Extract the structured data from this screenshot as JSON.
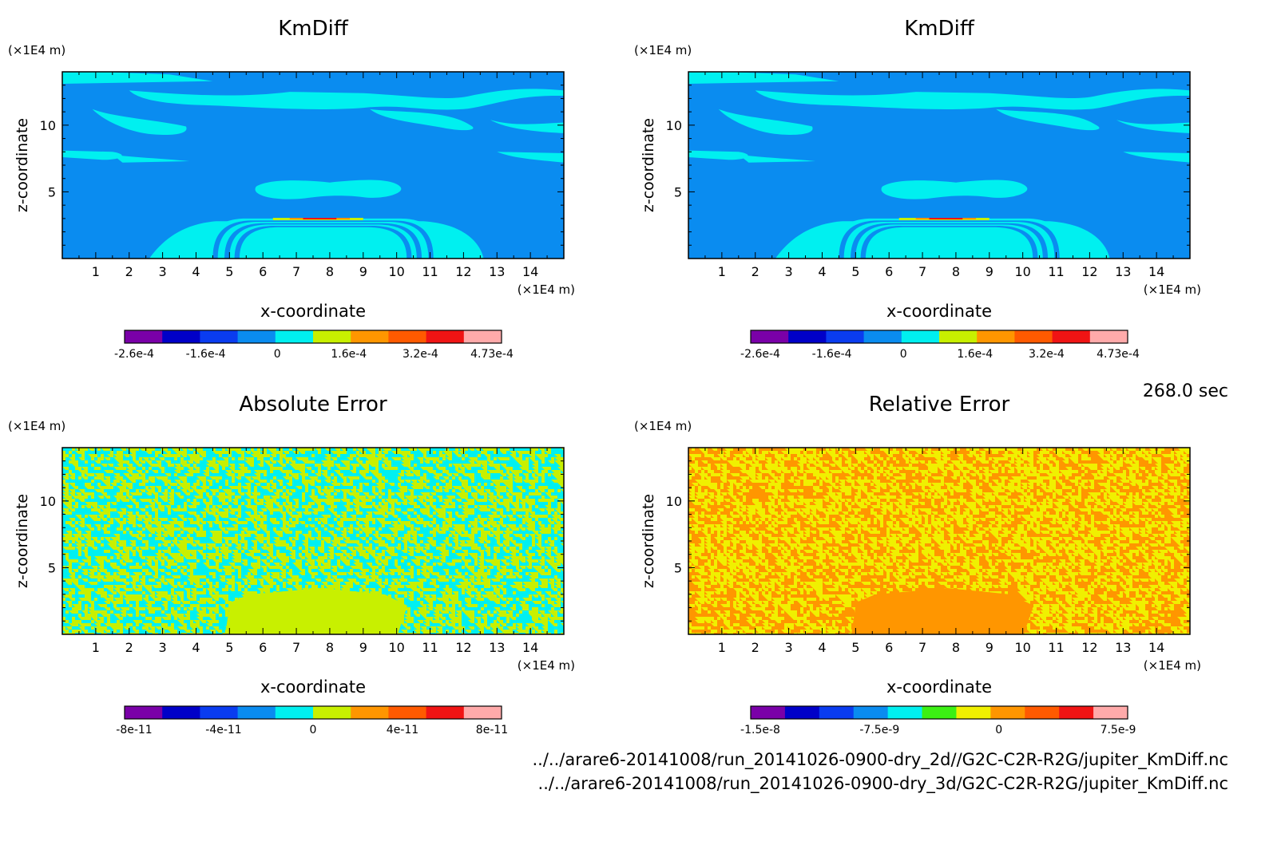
{
  "time_label": "268.0 sec",
  "files": [
    "../../arare6-20141008/run_20141026-0900-dry_2d//G2C-C2R-R2G/jupiter_KmDiff.nc",
    "../../arare6-20141008/run_20141026-0900-dry_3d/G2C-C2R-R2G/jupiter_KmDiff.nc"
  ],
  "chart_data": [
    {
      "type": "heatmap",
      "title": "KmDiff",
      "xlabel": "x-coordinate",
      "ylabel": "z-coordinate",
      "x_unit": "(×1E4 m)",
      "z_unit": "(×1E4 m)",
      "xlim": [
        0,
        15
      ],
      "zlim": [
        0,
        14
      ],
      "x_ticks": [
        1,
        2,
        3,
        4,
        5,
        6,
        7,
        8,
        9,
        10,
        11,
        12,
        13,
        14
      ],
      "z_ticks": [
        5,
        10
      ],
      "colorbar": {
        "colors": [
          "#7a00a8",
          "#0000c8",
          "#0a3cf0",
          "#0a8cf0",
          "#00f0f0",
          "#c8f000",
          "#ff9600",
          "#ff5a00",
          "#f01414",
          "#ffaaaa"
        ],
        "tick_labels": [
          "-2.6e-4",
          "-1.6e-4",
          "0",
          "1.6e-4",
          "3.2e-4",
          "4.73e-4"
        ],
        "range": [
          -0.00026,
          0.000473
        ]
      },
      "pattern": "kmdiff"
    },
    {
      "type": "heatmap",
      "title": "KmDiff",
      "xlabel": "x-coordinate",
      "ylabel": "z-coordinate",
      "x_unit": "(×1E4 m)",
      "z_unit": "(×1E4 m)",
      "xlim": [
        0,
        15
      ],
      "zlim": [
        0,
        14
      ],
      "x_ticks": [
        1,
        2,
        3,
        4,
        5,
        6,
        7,
        8,
        9,
        10,
        11,
        12,
        13,
        14
      ],
      "z_ticks": [
        5,
        10
      ],
      "colorbar": {
        "colors": [
          "#7a00a8",
          "#0000c8",
          "#0a3cf0",
          "#0a8cf0",
          "#00f0f0",
          "#c8f000",
          "#ff9600",
          "#ff5a00",
          "#f01414",
          "#ffaaaa"
        ],
        "tick_labels": [
          "-2.6e-4",
          "-1.6e-4",
          "0",
          "1.6e-4",
          "3.2e-4",
          "4.73e-4"
        ],
        "range": [
          -0.00026,
          0.000473
        ]
      },
      "pattern": "kmdiff"
    },
    {
      "type": "heatmap",
      "title": "Absolute Error",
      "xlabel": "x-coordinate",
      "ylabel": "z-coordinate",
      "x_unit": "(×1E4 m)",
      "z_unit": "(×1E4 m)",
      "xlim": [
        0,
        15
      ],
      "zlim": [
        0,
        14
      ],
      "x_ticks": [
        1,
        2,
        3,
        4,
        5,
        6,
        7,
        8,
        9,
        10,
        11,
        12,
        13,
        14
      ],
      "z_ticks": [
        5,
        10
      ],
      "colorbar": {
        "colors": [
          "#7a00a8",
          "#0000c8",
          "#0a3cf0",
          "#0a8cf0",
          "#00f0f0",
          "#c8f000",
          "#ff9600",
          "#ff5a00",
          "#f01414",
          "#ffaaaa"
        ],
        "tick_labels": [
          "-8e-11",
          "-4e-11",
          "0",
          "4e-11",
          "8e-11"
        ],
        "range": [
          -1e-10,
          1e-10
        ]
      },
      "pattern": "abs_noise",
      "noise_colors": [
        "#00f0f0",
        "#c8f000"
      ],
      "block_color": "#c8f000"
    },
    {
      "type": "heatmap",
      "title": "Relative Error",
      "xlabel": "x-coordinate",
      "ylabel": "z-coordinate",
      "x_unit": "(×1E4 m)",
      "z_unit": "(×1E4 m)",
      "xlim": [
        0,
        15
      ],
      "zlim": [
        0,
        14
      ],
      "x_ticks": [
        1,
        2,
        3,
        4,
        5,
        6,
        7,
        8,
        9,
        10,
        11,
        12,
        13,
        14
      ],
      "z_ticks": [
        5,
        10
      ],
      "colorbar": {
        "colors": [
          "#7a00a8",
          "#0000c8",
          "#0a3cf0",
          "#0a8cf0",
          "#00f0f0",
          "#3cf014",
          "#f0f000",
          "#ff9600",
          "#ff5a00",
          "#f01414",
          "#ffaaaa"
        ],
        "tick_labels": [
          "-1.5e-8",
          "-7.5e-9",
          "0",
          "7.5e-9"
        ],
        "range": [
          -1.8e-08,
          1.05e-08
        ]
      },
      "pattern": "rel_noise",
      "noise_colors": [
        "#ff9600",
        "#f0f000"
      ],
      "block_color": "#ff9600"
    }
  ]
}
